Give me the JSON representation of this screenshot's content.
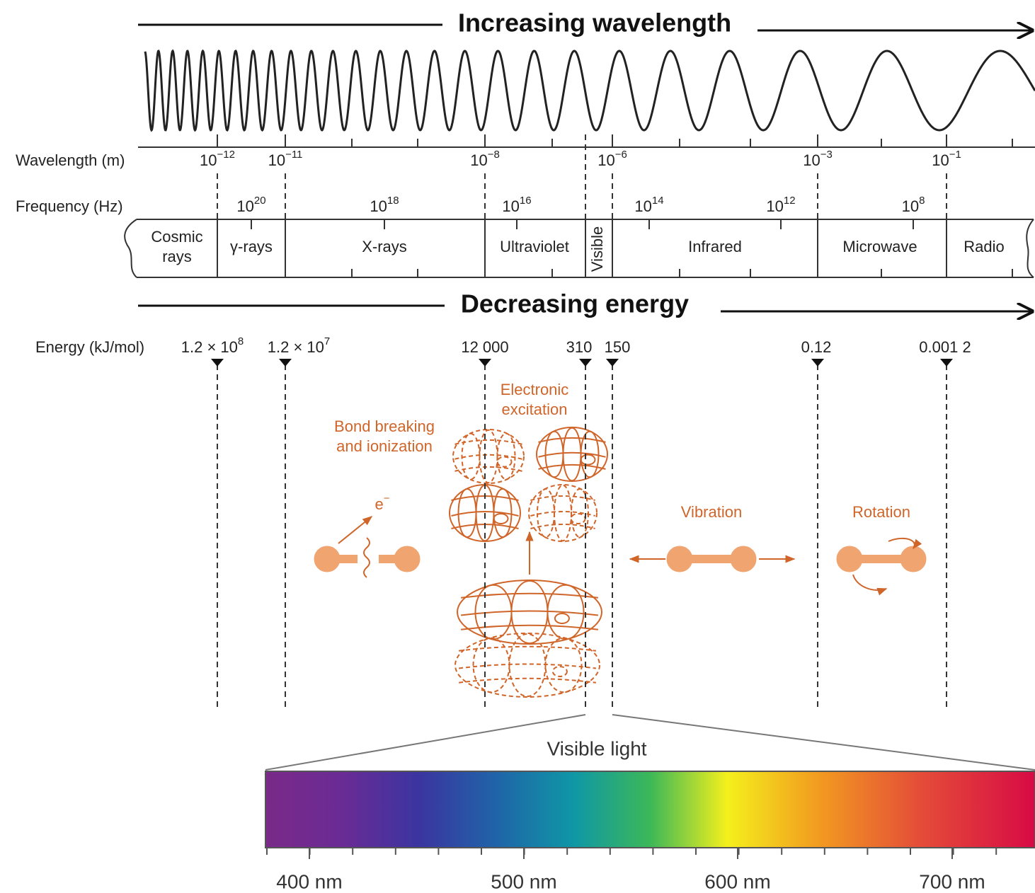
{
  "header": {
    "top_arrow": "Increasing wavelength",
    "bottom_arrow": "Decreasing energy"
  },
  "wavelength": {
    "label": "Wavelength (m)",
    "ticks": [
      {
        "base": "10",
        "exp": "−12"
      },
      {
        "base": "10",
        "exp": "−11"
      },
      {
        "base": "10",
        "exp": "−8"
      },
      {
        "base": "10",
        "exp": "−6"
      },
      {
        "base": "10",
        "exp": "−3"
      },
      {
        "base": "10",
        "exp": "−1"
      }
    ]
  },
  "frequency": {
    "label": "Frequency (Hz)",
    "ticks": [
      {
        "base": "10",
        "exp": "20"
      },
      {
        "base": "10",
        "exp": "18"
      },
      {
        "base": "10",
        "exp": "16"
      },
      {
        "base": "10",
        "exp": "14"
      },
      {
        "base": "10",
        "exp": "12"
      },
      {
        "base": "10",
        "exp": "8"
      }
    ]
  },
  "regions": [
    {
      "lines": [
        "Cosmic",
        "rays"
      ]
    },
    {
      "lines": [
        "γ-rays"
      ]
    },
    {
      "lines": [
        "X-rays"
      ]
    },
    {
      "lines": [
        "Ultraviolet"
      ]
    },
    {
      "lines": [
        "Visible"
      ]
    },
    {
      "lines": [
        "Infrared"
      ]
    },
    {
      "lines": [
        "Microwave"
      ]
    },
    {
      "lines": [
        "Radio"
      ]
    }
  ],
  "energy": {
    "label": "Energy (kJ/mol)",
    "ticks": [
      {
        "text": "1.2 × 10",
        "exp": "8"
      },
      {
        "text": "1.2 × 10",
        "exp": "7"
      },
      {
        "text": "12 000"
      },
      {
        "text": "310"
      },
      {
        "text": "150"
      },
      {
        "text": "0.12"
      },
      {
        "text": "0.001 2"
      }
    ]
  },
  "processes": {
    "ionization": {
      "lines": [
        "Bond breaking",
        "and ionization"
      ],
      "electron": {
        "base": "e",
        "exp": "−"
      }
    },
    "electronic": {
      "lines": [
        "Electronic",
        "excitation"
      ]
    },
    "vibration": "Vibration",
    "rotation": "Rotation"
  },
  "visible_light": {
    "title": "Visible light",
    "labels": [
      "400 nm",
      "500 nm",
      "600 nm",
      "700 nm"
    ]
  }
}
